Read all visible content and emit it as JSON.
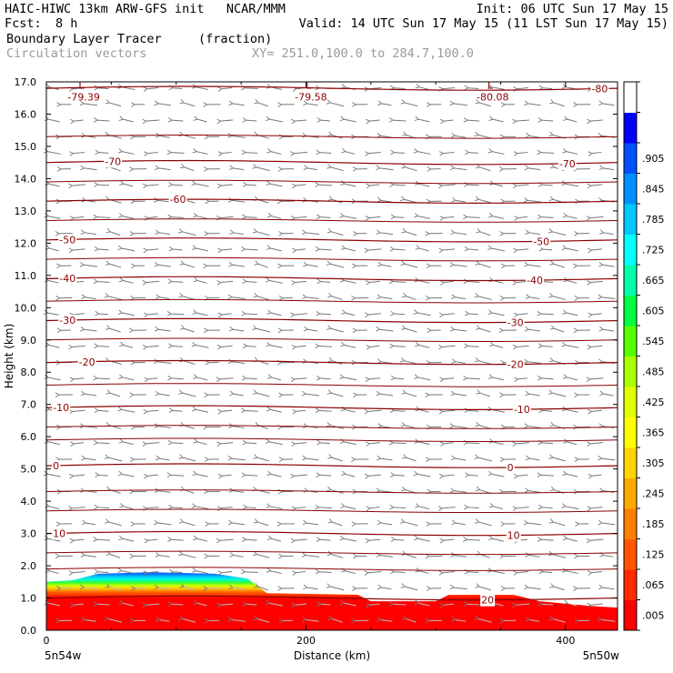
{
  "header": {
    "title_left": "HAIC-HIWC 13km ARW-GFS init   NCAR/MMM",
    "fcst_label": "Fcst:",
    "fcst_value": "8 h",
    "init": "Init: 06 UTC Sun 17 May 15",
    "valid": "Valid: 14 UTC Sun 17 May 15 (11 LST Sun 17 May 15)",
    "field1": "Boundary Layer Tracer",
    "field1_units": "(fraction)",
    "field2": "Circulation vectors",
    "xy": "XY= 251.0,100.0 to 284.7,100.0"
  },
  "chart_data": {
    "type": "heatmap",
    "title": "Boundary Layer Tracer (fraction)",
    "xlabel": "Distance (km)",
    "ylabel": "Height (km)",
    "xlim": [
      0,
      440
    ],
    "ylim": [
      0,
      17
    ],
    "x_ticks": [
      0,
      200,
      400
    ],
    "x_tick_labels": [
      "0",
      "200",
      "400"
    ],
    "y_ticks": [
      0,
      1,
      2,
      3,
      4,
      5,
      6,
      7,
      8,
      9,
      10,
      11,
      12,
      13,
      14,
      15,
      16,
      17
    ],
    "y_tick_labels": [
      "0.0",
      "1.0",
      "2.0",
      "3.0",
      "4.0",
      "5.0",
      "6.0",
      "7.0",
      "8.0",
      "9.0",
      "10.0",
      "11.0",
      "12.0",
      "13.0",
      "14.0",
      "15.0",
      "16.0",
      "17.0"
    ],
    "endpoint_labels": [
      "5n54w",
      "5n50w"
    ],
    "colorbar_labels": [
      ".005",
      ".065",
      ".125",
      ".185",
      ".245",
      ".305",
      ".365",
      ".425",
      ".485",
      ".545",
      ".605",
      ".665",
      ".725",
      ".785",
      ".845",
      ".905"
    ],
    "colorbar_colors": [
      "#ff0000",
      "#ff2a00",
      "#ff5500",
      "#ff7f00",
      "#ffaa00",
      "#ffd400",
      "#ffff00",
      "#e0ff00",
      "#aaff00",
      "#55ff00",
      "#00ff40",
      "#00ffaa",
      "#00ffff",
      "#00c8ff",
      "#0090ff",
      "#0050ff",
      "#0000ff",
      "#ffffff"
    ],
    "terrain_top_km": [
      {
        "x": 0,
        "y": 1.5
      },
      {
        "x": 20,
        "y": 1.55
      },
      {
        "x": 40,
        "y": 1.75
      },
      {
        "x": 80,
        "y": 1.8
      },
      {
        "x": 130,
        "y": 1.75
      },
      {
        "x": 155,
        "y": 1.6
      },
      {
        "x": 170,
        "y": 1.15
      },
      {
        "x": 240,
        "y": 1.1
      },
      {
        "x": 250,
        "y": 0.9
      },
      {
        "x": 300,
        "y": 0.9
      },
      {
        "x": 310,
        "y": 1.1
      },
      {
        "x": 360,
        "y": 1.1
      },
      {
        "x": 380,
        "y": 0.9
      },
      {
        "x": 420,
        "y": 0.75
      },
      {
        "x": 440,
        "y": 0.7
      }
    ],
    "temperature_contours": [
      {
        "value": "-80",
        "height_km": 16.8
      },
      {
        "value": "-70",
        "height_km": 14.5
      },
      {
        "value": "-60",
        "height_km": 13.3
      },
      {
        "value": "-50",
        "height_km": 12.1
      },
      {
        "value": "-40",
        "height_km": 10.9
      },
      {
        "value": "-30",
        "height_km": 9.6
      },
      {
        "value": "-20",
        "height_km": 8.3
      },
      {
        "value": "-10",
        "height_km": 6.9
      },
      {
        "value": "0",
        "height_km": 5.1
      },
      {
        "value": "10",
        "height_km": 3.0
      },
      {
        "value": "20",
        "height_km": 1.0
      }
    ],
    "extra_contours_km": [
      15.3,
      13.9,
      12.7,
      11.5,
      10.2,
      9.0,
      7.6,
      6.3,
      5.9,
      4.3,
      3.7,
      2.4,
      1.9
    ],
    "low_labels": [
      {
        "text": "-79.39",
        "x": 15
      },
      {
        "text": "-79.58",
        "x": 190
      },
      {
        "text": "-80.08",
        "x": 330
      }
    ]
  }
}
